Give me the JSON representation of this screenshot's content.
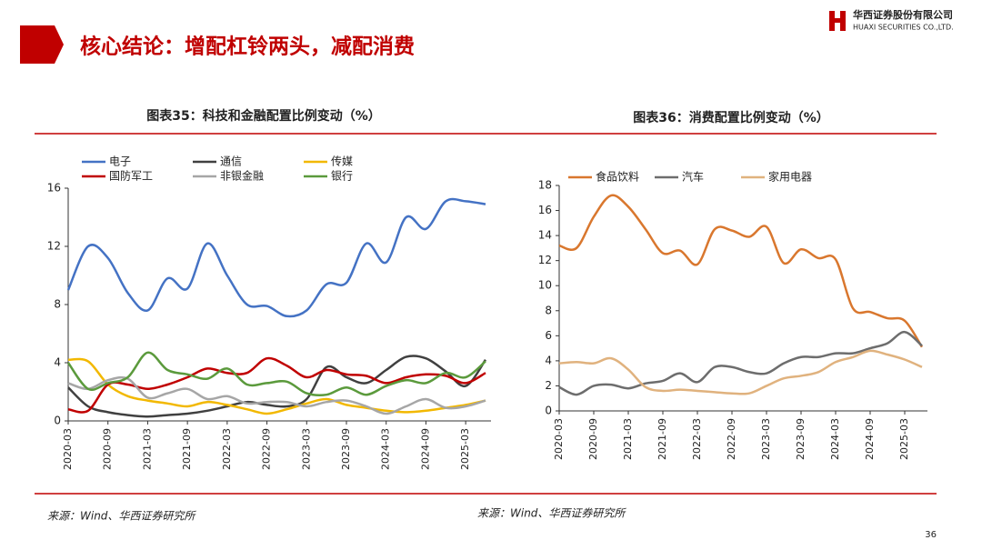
{
  "header": {
    "title": "核心结论：增配杠铃两头，减配消费",
    "logo_cn": "华西证券股份有限公司",
    "logo_en": "HUAXI SECURITIES CO.,LTD."
  },
  "chart_data": [
    {
      "type": "line",
      "title": "图表35：科技和金融配置比例变动（%）",
      "x": [
        "2020-03",
        null,
        "2020-09",
        null,
        "2021-03",
        null,
        "2021-09",
        null,
        "2022-03",
        null,
        "2022-09",
        null,
        "2023-03",
        null,
        "2023-09",
        null,
        "2024-03",
        null,
        "2024-09",
        null,
        "2025-03",
        null
      ],
      "series": [
        {
          "name": "电子",
          "color": "#4472c4",
          "values": [
            9,
            12,
            11.2,
            8.8,
            7.6,
            9.8,
            9.1,
            12.2,
            10,
            8,
            7.9,
            7.2,
            7.6,
            9.4,
            9.5,
            12.2,
            10.9,
            14,
            13.2,
            15.1,
            15.1,
            14.9
          ]
        },
        {
          "name": "通信",
          "color": "#404040",
          "values": [
            2.3,
            1.0,
            0.6,
            0.4,
            0.3,
            0.4,
            0.5,
            0.7,
            1.0,
            1.3,
            1.1,
            1.0,
            1.5,
            3.7,
            3.0,
            2.6,
            3.5,
            4.4,
            4.3,
            3.4,
            2.4,
            4.2
          ]
        },
        {
          "name": "传媒",
          "color": "#f2b800",
          "values": [
            4.2,
            4.1,
            2.5,
            1.7,
            1.4,
            1.2,
            1.0,
            1.3,
            1.1,
            0.8,
            0.5,
            0.8,
            1.2,
            1.5,
            1.1,
            0.9,
            0.7,
            0.6,
            0.7,
            0.9,
            1.1,
            1.4
          ]
        },
        {
          "name": "国防军工",
          "color": "#c00000",
          "values": [
            0.8,
            0.7,
            2.5,
            2.5,
            2.2,
            2.5,
            3.0,
            3.6,
            3.3,
            3.3,
            4.3,
            3.8,
            3.0,
            3.5,
            3.2,
            3.1,
            2.6,
            3.0,
            3.2,
            3.1,
            2.6,
            3.3
          ]
        },
        {
          "name": "非银金融",
          "color": "#a6a6a6",
          "values": [
            2.6,
            2.2,
            2.8,
            2.9,
            1.6,
            1.9,
            2.2,
            1.5,
            1.7,
            1.2,
            1.3,
            1.3,
            1.0,
            1.3,
            1.4,
            1.0,
            0.5,
            1.0,
            1.5,
            0.9,
            1.0,
            1.4
          ]
        },
        {
          "name": "银行",
          "color": "#5b9a3c",
          "values": [
            4.0,
            2.2,
            2.6,
            3.0,
            4.7,
            3.5,
            3.2,
            2.9,
            3.6,
            2.5,
            2.6,
            2.7,
            1.9,
            1.8,
            2.3,
            1.8,
            2.4,
            2.8,
            2.6,
            3.3,
            3.0,
            4.1
          ]
        }
      ],
      "ylim": [
        0,
        16
      ],
      "yticks": [
        0,
        4,
        8,
        12,
        16
      ],
      "source": "来源：Wind、华西证券研究所"
    },
    {
      "type": "line",
      "title": "图表36：消费配置比例变动（%）",
      "x": [
        "2020-03",
        null,
        "2020-09",
        null,
        "2021-03",
        null,
        "2021-09",
        null,
        "2022-03",
        null,
        "2022-09",
        null,
        "2023-03",
        null,
        "2023-09",
        null,
        "2024-03",
        null,
        "2024-09",
        null,
        "2025-03",
        null
      ],
      "series": [
        {
          "name": "食品饮料",
          "color": "#d9772e",
          "values": [
            13.2,
            13.0,
            15.5,
            17.2,
            16.3,
            14.5,
            12.6,
            12.8,
            11.7,
            14.5,
            14.4,
            13.9,
            14.7,
            11.8,
            12.9,
            12.2,
            12.1,
            8.2,
            7.9,
            7.4,
            7.2,
            5.1
          ]
        },
        {
          "name": "汽车",
          "color": "#6d6d6d",
          "values": [
            1.9,
            1.3,
            2.0,
            2.1,
            1.8,
            2.2,
            2.4,
            3.0,
            2.3,
            3.5,
            3.5,
            3.1,
            3.0,
            3.8,
            4.3,
            4.3,
            4.6,
            4.6,
            5.0,
            5.4,
            6.3,
            5.2
          ]
        },
        {
          "name": "家用电器",
          "color": "#e0b27e",
          "values": [
            3.8,
            3.9,
            3.8,
            4.2,
            3.3,
            1.9,
            1.6,
            1.7,
            1.6,
            1.5,
            1.4,
            1.4,
            2.0,
            2.6,
            2.8,
            3.1,
            3.9,
            4.3,
            4.8,
            4.5,
            4.1,
            3.5
          ]
        }
      ],
      "ylim": [
        0,
        18
      ],
      "yticks": [
        0,
        2,
        4,
        6,
        8,
        10,
        12,
        14,
        16,
        18
      ],
      "source": "来源：Wind、华西证券研究所"
    }
  ],
  "page_number": "36"
}
